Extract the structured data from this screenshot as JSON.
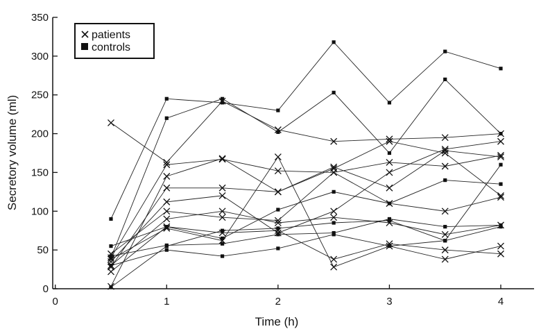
{
  "chart_data": {
    "type": "line",
    "title": "",
    "xlabel": "Time (h)",
    "ylabel": "Secretory volume (ml)",
    "xlim": [
      0,
      4.3
    ],
    "ylim": [
      0,
      350
    ],
    "x_ticks": [
      0,
      1,
      2,
      3,
      4
    ],
    "y_ticks": [
      0,
      50,
      100,
      150,
      200,
      250,
      300,
      350
    ],
    "grid": false,
    "legend": {
      "placement": "top-left",
      "entries": [
        {
          "label": "patients",
          "marker": "x-cross"
        },
        {
          "label": "controls",
          "marker": "filled-square"
        }
      ]
    },
    "x": [
      0.5,
      1,
      1.5,
      2,
      2.5,
      3,
      3.5,
      4
    ],
    "patients": [
      {
        "values": [
          214,
          163,
          242,
          205,
          190,
          193,
          195,
          200
        ]
      },
      {
        "values": [
          40,
          160,
          167,
          152,
          150,
          163,
          158,
          172
        ]
      },
      {
        "values": [
          3,
          145,
          168,
          125,
          157,
          130,
          178,
          170
        ]
      },
      {
        "values": [
          28,
          130,
          130,
          125,
          155,
          190,
          175,
          120
        ]
      },
      {
        "values": [
          35,
          112,
          120,
          72,
          100,
          150,
          180,
          190
        ]
      },
      {
        "values": [
          45,
          100,
          92,
          88,
          150,
          110,
          100,
          118
        ]
      },
      {
        "values": [
          30,
          90,
          100,
          85,
          92,
          85,
          70,
          82
        ]
      },
      {
        "values": [
          38,
          78,
          62,
          170,
          28,
          55,
          38,
          55
        ]
      },
      {
        "values": [
          22,
          80,
          72,
          75,
          38,
          58,
          50,
          45
        ]
      }
    ],
    "controls": [
      {
        "values": [
          90,
          245,
          240,
          230,
          318,
          240,
          306,
          284
        ]
      },
      {
        "values": [
          40,
          220,
          245,
          202,
          253,
          175,
          270,
          200
        ]
      },
      {
        "values": [
          55,
          80,
          65,
          102,
          125,
          110,
          140,
          135
        ]
      },
      {
        "values": [
          42,
          56,
          58,
          70,
          72,
          90,
          80,
          82
        ]
      },
      {
        "values": [
          30,
          50,
          42,
          52,
          70,
          55,
          62,
          80
        ]
      },
      {
        "values": [
          2,
          55,
          75,
          78,
          85,
          88,
          62,
          160
        ]
      }
    ]
  }
}
